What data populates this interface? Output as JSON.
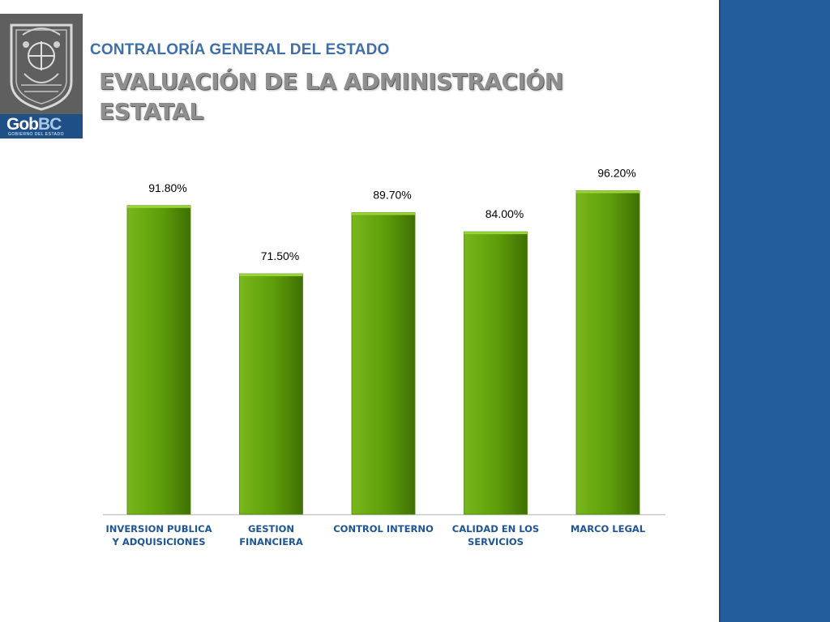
{
  "header": {
    "organization": "CONTRALORÍA GENERAL DEL ESTADO",
    "title_line1": "EVALUACIÓN DE LA ADMINISTRACIÓN",
    "title_line2": "ESTATAL"
  },
  "logo": {
    "brand_gob": "Gob",
    "brand_bc": "BC",
    "brand_sub": "GOBIERNO DEL ESTADO",
    "icon": "state-seal-icon"
  },
  "colors": {
    "bar": "#5c9c0a",
    "bar_light": "#78b81a",
    "bar_dark": "#3f7004",
    "category_text": "#1f5592",
    "right_band": "#245d9c",
    "title": "#8f8f8f"
  },
  "chart_data": {
    "type": "bar",
    "categories": [
      [
        "INVERSION PUBLICA",
        "Y ADQUISICIONES"
      ],
      [
        "GESTION",
        "FINANCIERA"
      ],
      [
        "CONTROL INTERNO"
      ],
      [
        "CALIDAD EN LOS",
        "SERVICIOS"
      ],
      [
        "MARCO LEGAL"
      ]
    ],
    "values": [
      91.8,
      71.5,
      89.7,
      84.0,
      96.2
    ],
    "value_labels": [
      "91.80%",
      "71.50%",
      "89.70%",
      "84.00%",
      "96.20%"
    ],
    "ylim": [
      0,
      100
    ],
    "grid": false,
    "legend": "none",
    "title": "",
    "xlabel": "",
    "ylabel": ""
  }
}
